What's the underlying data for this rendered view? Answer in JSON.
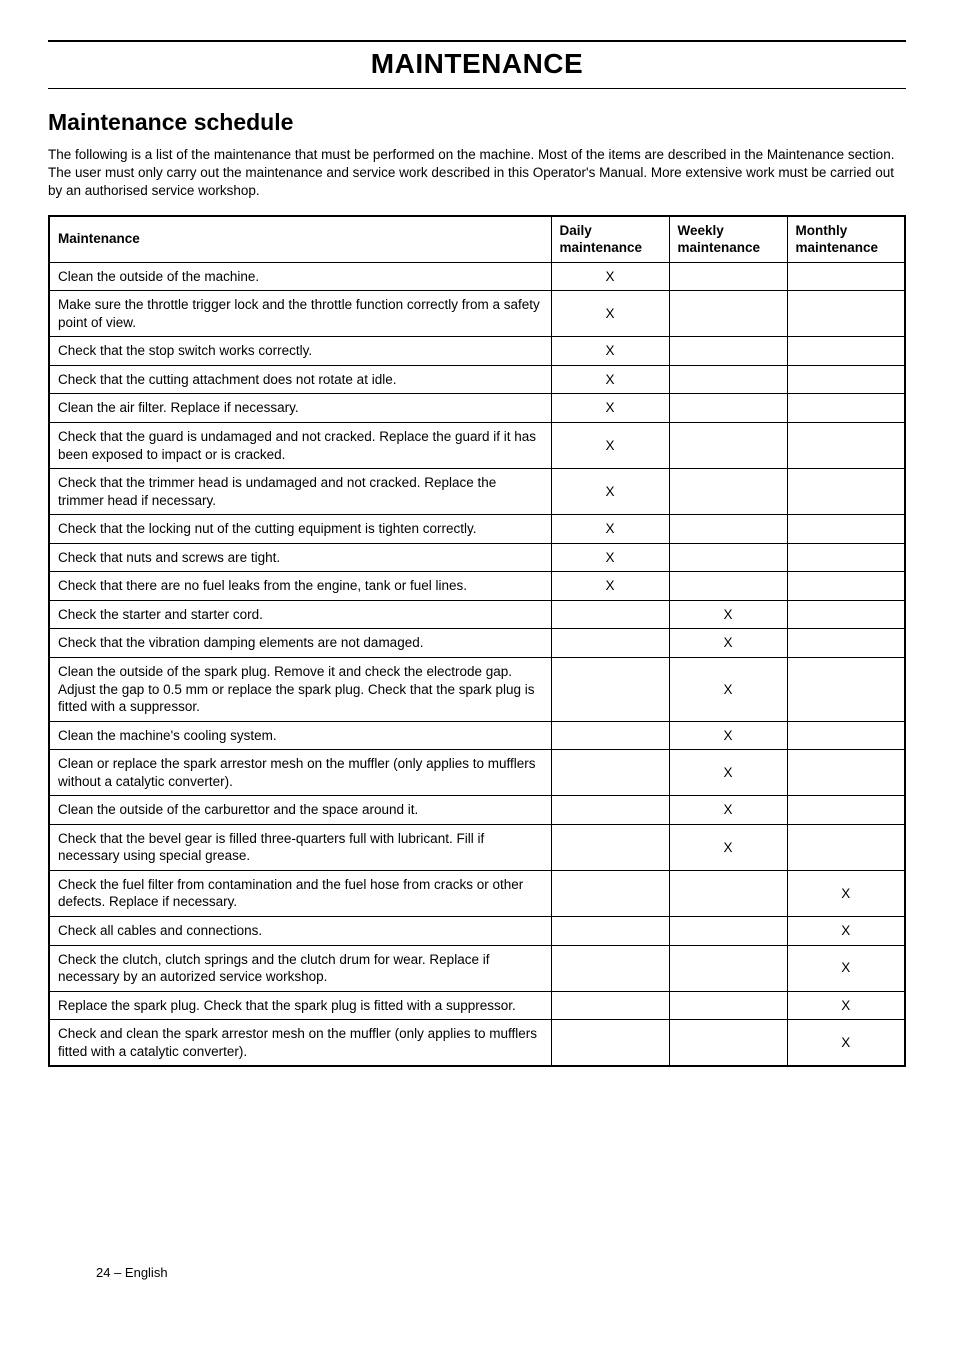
{
  "page": {
    "title": "MAINTENANCE",
    "section_heading": "Maintenance schedule",
    "intro": "The following is a list of the maintenance that must be performed on the machine. Most of the items are described in the Maintenance section. The user must only carry out the maintenance and service work described in this Operator's Manual. More extensive work must be carried out by an authorised service workshop.",
    "footer": "24 – English"
  },
  "table": {
    "headers": {
      "maintenance": "Maintenance",
      "daily": "Daily maintenance",
      "weekly": "Weekly maintenance",
      "monthly": "Monthly maintenance"
    },
    "mark": "X",
    "rows": [
      {
        "task": "Clean the outside of the machine.",
        "daily": true,
        "weekly": false,
        "monthly": false
      },
      {
        "task": "Make sure the throttle trigger lock and the throttle function correctly from a safety point of view.",
        "daily": true,
        "weekly": false,
        "monthly": false
      },
      {
        "task": "Check that the stop switch works correctly.",
        "daily": true,
        "weekly": false,
        "monthly": false
      },
      {
        "task": "Check that the cutting attachment does not rotate at idle.",
        "daily": true,
        "weekly": false,
        "monthly": false
      },
      {
        "task": "Clean the air filter. Replace if necessary.",
        "daily": true,
        "weekly": false,
        "monthly": false
      },
      {
        "task": "Check that the guard is undamaged and not cracked. Replace the guard if it has been exposed to impact or is cracked.",
        "daily": true,
        "weekly": false,
        "monthly": false
      },
      {
        "task": "Check that the trimmer head is undamaged and not cracked. Replace the trimmer head if necessary.",
        "daily": true,
        "weekly": false,
        "monthly": false
      },
      {
        "task": "Check that the locking nut of the cutting equipment is tighten correctly.",
        "daily": true,
        "weekly": false,
        "monthly": false
      },
      {
        "task": "Check that nuts and screws are tight.",
        "daily": true,
        "weekly": false,
        "monthly": false
      },
      {
        "task": "Check that there are no fuel leaks from the engine, tank or fuel lines.",
        "daily": true,
        "weekly": false,
        "monthly": false
      },
      {
        "task": "Check the starter and starter cord.",
        "daily": false,
        "weekly": true,
        "monthly": false
      },
      {
        "task": "Check that the vibration damping elements are not damaged.",
        "daily": false,
        "weekly": true,
        "monthly": false
      },
      {
        "task": "Clean the outside of the spark plug. Remove it and check the electrode gap. Adjust the gap to 0.5 mm or replace the spark plug. Check that the spark plug is fitted with a suppressor.",
        "daily": false,
        "weekly": true,
        "monthly": false
      },
      {
        "task": "Clean the machine's cooling system.",
        "daily": false,
        "weekly": true,
        "monthly": false
      },
      {
        "task": "Clean or replace the spark arrestor mesh on the muffler (only applies to mufflers without a catalytic converter).",
        "daily": false,
        "weekly": true,
        "monthly": false
      },
      {
        "task": "Clean the outside of the carburettor and the space around it.",
        "daily": false,
        "weekly": true,
        "monthly": false
      },
      {
        "task": "Check that the bevel gear is filled three-quarters full with lubricant. Fill if necessary using special grease.",
        "daily": false,
        "weekly": true,
        "monthly": false
      },
      {
        "task": "Check the fuel filter from contamination and the fuel hose from cracks or other defects. Replace if necessary.",
        "daily": false,
        "weekly": false,
        "monthly": true
      },
      {
        "task": "Check all cables and connections.",
        "daily": false,
        "weekly": false,
        "monthly": true
      },
      {
        "task": "Check the clutch, clutch springs and the clutch drum for wear. Replace if necessary by an autorized service workshop.",
        "daily": false,
        "weekly": false,
        "monthly": true
      },
      {
        "task": "Replace the spark plug. Check that the spark plug is fitted with a suppressor.",
        "daily": false,
        "weekly": false,
        "monthly": true
      },
      {
        "task": "Check and clean the spark arrestor mesh on the muffler (only applies to mufflers fitted with a catalytic converter).",
        "daily": false,
        "weekly": false,
        "monthly": true
      }
    ]
  }
}
